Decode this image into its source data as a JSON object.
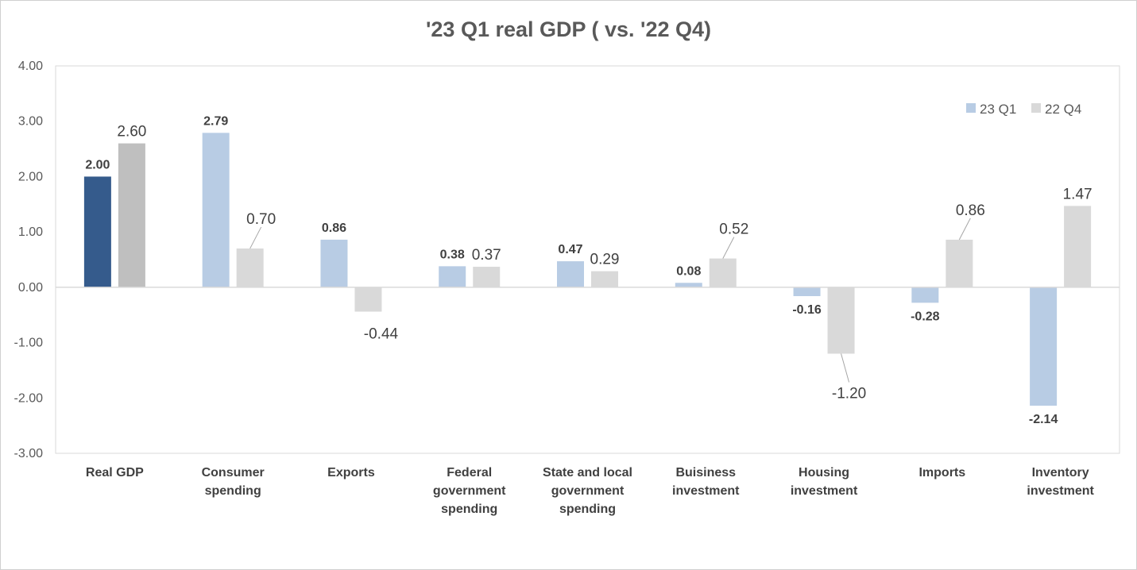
{
  "chart_data": {
    "type": "bar",
    "title": "'23 Q1 real GDP ( vs. '22 Q4)",
    "ylim": [
      -3,
      4
    ],
    "yticks": [
      "4.00",
      "3.00",
      "2.00",
      "1.00",
      "0.00",
      "-1.00",
      "-2.00",
      "-3.00"
    ],
    "grid": false,
    "legend_position": "top-right",
    "categories": [
      [
        "Real GDP"
      ],
      [
        "Consumer",
        "spending"
      ],
      [
        "Exports"
      ],
      [
        "Federal",
        "government",
        "spending"
      ],
      [
        "State and local",
        "government",
        "spending"
      ],
      [
        "Buisiness",
        "investment"
      ],
      [
        "Housing",
        "investment"
      ],
      [
        "Imports"
      ],
      [
        "Inventory",
        "investment"
      ]
    ],
    "series": [
      {
        "name": "23 Q1",
        "color": "#b8cce4",
        "highlight_color": "#355b8c",
        "values": [
          2.0,
          2.79,
          0.86,
          0.38,
          0.47,
          0.08,
          -0.16,
          -0.28,
          -2.14
        ],
        "labels": [
          "2.00",
          "2.79",
          "0.86",
          "0.38",
          "0.47",
          "0.08",
          "-0.16",
          "-0.28",
          "-2.14"
        ]
      },
      {
        "name": "22 Q4",
        "color": "#d9d9d9",
        "highlight_color": "#bfbfbf",
        "values": [
          2.6,
          0.7,
          -0.44,
          0.37,
          0.29,
          0.52,
          -1.2,
          0.86,
          1.47
        ],
        "labels": [
          "2.60",
          "0.70",
          "-0.44",
          "0.37",
          "0.29",
          "0.52",
          "-1.20",
          "0.86",
          "1.47"
        ]
      }
    ]
  }
}
